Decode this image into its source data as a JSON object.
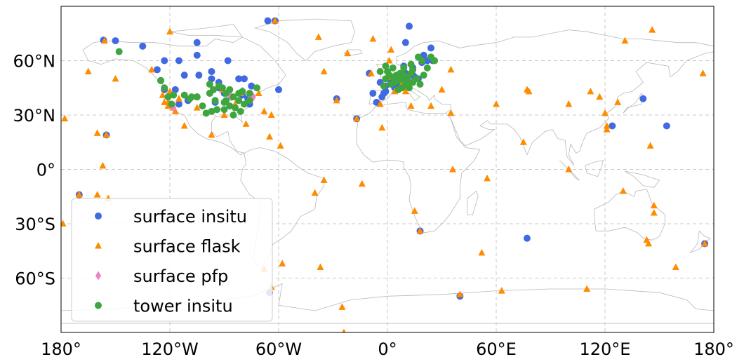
{
  "chart_data": {
    "type": "scatter",
    "projection": "plate-carree",
    "xlim": [
      -180,
      180
    ],
    "ylim": [
      -90,
      90
    ],
    "grid": true,
    "grid_style": "dashed",
    "legend_position": "lower-left",
    "x_ticks": [
      {
        "value": -180,
        "label": "180°"
      },
      {
        "value": -120,
        "label": "120°W"
      },
      {
        "value": -60,
        "label": "60°W"
      },
      {
        "value": 0,
        "label": "0°"
      },
      {
        "value": 60,
        "label": "60°E"
      },
      {
        "value": 120,
        "label": "120°E"
      },
      {
        "value": 180,
        "label": "180°"
      }
    ],
    "y_ticks": [
      {
        "value": 60,
        "label": "60°N"
      },
      {
        "value": 30,
        "label": "30°N"
      },
      {
        "value": 0,
        "label": "0°"
      },
      {
        "value": -30,
        "label": "30°S"
      },
      {
        "value": -60,
        "label": "60°S"
      }
    ],
    "series": [
      {
        "name": "surface insitu",
        "marker": "circle",
        "color": "#4169e1",
        "points": [
          [
            -156.6,
            71.3
          ],
          [
            -150,
            71
          ],
          [
            -135,
            68
          ],
          [
            -123,
            60
          ],
          [
            -127,
            55
          ],
          [
            -105,
            70
          ],
          [
            -105,
            63
          ],
          [
            -115,
            60
          ],
          [
            -112,
            52
          ],
          [
            -104,
            52
          ],
          [
            -97,
            50
          ],
          [
            -97,
            54
          ],
          [
            -88,
            60
          ],
          [
            -82,
            50
          ],
          [
            -79,
            50
          ],
          [
            -75,
            46
          ],
          [
            -60,
            44
          ],
          [
            -93,
            48
          ],
          [
            -93,
            45
          ],
          [
            -98,
            42
          ],
          [
            -90,
            42
          ],
          [
            -86,
            40
          ],
          [
            -80,
            41
          ],
          [
            -77,
            39
          ],
          [
            -76,
            36
          ],
          [
            -95,
            37
          ],
          [
            -105,
            40
          ],
          [
            -115,
            36
          ],
          [
            -120,
            36
          ],
          [
            -123,
            44
          ],
          [
            -125,
            49
          ],
          [
            -110,
            38
          ],
          [
            -117,
            44
          ],
          [
            -66,
            82
          ],
          [
            -62,
            82
          ],
          [
            -170,
            -14
          ],
          [
            -155,
            19
          ],
          [
            -65,
            -68
          ],
          [
            12,
            79
          ],
          [
            10,
            70
          ],
          [
            24,
            67
          ],
          [
            20,
            63
          ],
          [
            22,
            60
          ],
          [
            14,
            56
          ],
          [
            9,
            57
          ],
          [
            5,
            52
          ],
          [
            8,
            53
          ],
          [
            10,
            53
          ],
          [
            14,
            52
          ],
          [
            15,
            51
          ],
          [
            11,
            50
          ],
          [
            8,
            50
          ],
          [
            6,
            50
          ],
          [
            9,
            48
          ],
          [
            11,
            48
          ],
          [
            7,
            46
          ],
          [
            4,
            45
          ],
          [
            2,
            48
          ],
          [
            -1,
            46
          ],
          [
            -4,
            48
          ],
          [
            -1,
            43
          ],
          [
            -2,
            42
          ],
          [
            -3,
            40
          ],
          [
            -6,
            37
          ],
          [
            -8,
            42
          ],
          [
            -10,
            53
          ],
          [
            -17,
            28
          ],
          [
            -28,
            39
          ],
          [
            18,
            -34
          ],
          [
            77,
            -38
          ],
          [
            40,
            -70
          ],
          [
            141,
            39
          ],
          [
            154,
            24
          ],
          [
            124,
            24
          ],
          [
            175,
            -41
          ],
          [
            19,
            59
          ],
          [
            25,
            60
          ],
          [
            17,
            50
          ]
        ]
      },
      {
        "name": "surface flask",
        "marker": "triangle",
        "color": "#ff8c00",
        "points": [
          [
            -156,
            71
          ],
          [
            -120,
            76
          ],
          [
            -165,
            54
          ],
          [
            -150,
            50
          ],
          [
            -178,
            28
          ],
          [
            -155,
            19
          ],
          [
            -160,
            20
          ],
          [
            -157,
            2
          ],
          [
            -170,
            -14
          ],
          [
            -179,
            -30
          ],
          [
            -62,
            82
          ],
          [
            -68,
            32
          ],
          [
            -65,
            18
          ],
          [
            -59,
            13
          ],
          [
            -123,
            37
          ],
          [
            -121,
            35
          ],
          [
            -117,
            32
          ],
          [
            -112,
            24
          ],
          [
            -97,
            19
          ],
          [
            -124,
            41
          ],
          [
            -120,
            43
          ],
          [
            -115,
            39
          ],
          [
            -90,
            30
          ],
          [
            -78,
            25
          ],
          [
            -71,
            42
          ],
          [
            -38,
            73
          ],
          [
            -35,
            54
          ],
          [
            -22,
            64
          ],
          [
            -28,
            38
          ],
          [
            -17,
            28
          ],
          [
            -8,
            72
          ],
          [
            -9,
            53
          ],
          [
            1,
            60
          ],
          [
            2,
            66
          ],
          [
            0,
            51
          ],
          [
            -4,
            36
          ],
          [
            4,
            43
          ],
          [
            8,
            47
          ],
          [
            10,
            43
          ],
          [
            13,
            35
          ],
          [
            24,
            35
          ],
          [
            35,
            31
          ],
          [
            -3,
            23
          ],
          [
            30,
            44
          ],
          [
            35,
            55
          ],
          [
            36,
            0
          ],
          [
            55,
            -5
          ],
          [
            60,
            36
          ],
          [
            75,
            15
          ],
          [
            77,
            44
          ],
          [
            78,
            43
          ],
          [
            100,
            36
          ],
          [
            100,
            0
          ],
          [
            112,
            43
          ],
          [
            117,
            40
          ],
          [
            120,
            31
          ],
          [
            121,
            22
          ],
          [
            121,
            24
          ],
          [
            127,
            37
          ],
          [
            131,
            71
          ],
          [
            146,
            77
          ],
          [
            174,
            53
          ],
          [
            145,
            13
          ],
          [
            130,
            -12
          ],
          [
            147,
            -20
          ],
          [
            147,
            -24
          ],
          [
            143,
            -39
          ],
          [
            144,
            -41
          ],
          [
            175,
            -41
          ],
          [
            159,
            -54
          ],
          [
            110,
            -66
          ],
          [
            63,
            -67
          ],
          [
            40,
            -69
          ],
          [
            52,
            -46
          ],
          [
            15,
            -23
          ],
          [
            18,
            -34
          ],
          [
            -40,
            -13
          ],
          [
            -35,
            -6
          ],
          [
            -14,
            -8
          ],
          [
            -37,
            -54
          ],
          [
            -64,
            -65
          ],
          [
            -68,
            -55
          ],
          [
            -25,
            -76
          ],
          [
            -24,
            -90
          ],
          [
            -121,
            37
          ],
          [
            -130,
            55
          ],
          [
            -160,
            -14
          ],
          [
            -154,
            -16
          ],
          [
            -118,
            34
          ],
          [
            -91,
            44
          ],
          [
            -81,
            42
          ],
          [
            -84,
            36
          ],
          [
            -105,
            34
          ],
          [
            -64,
            30
          ],
          [
            -58,
            -52
          ]
        ]
      },
      {
        "name": "surface pfp",
        "marker": "diamond",
        "color": "#ee82c8",
        "points": [
          [
            -118,
            34
          ],
          [
            -87,
            41
          ],
          [
            -86,
            40
          ],
          [
            -80,
            43
          ],
          [
            -76,
            41
          ],
          [
            -74,
            40
          ]
        ]
      },
      {
        "name": "tower insitu",
        "marker": "circle",
        "color": "#3fa63f",
        "points": [
          [
            -148,
            65
          ],
          [
            -125,
            49
          ],
          [
            -123,
            45
          ],
          [
            -121,
            40
          ],
          [
            -119,
            36
          ],
          [
            -112,
            41
          ],
          [
            -108,
            40
          ],
          [
            -105,
            40
          ],
          [
            -98,
            47
          ],
          [
            -96,
            44
          ],
          [
            -93,
            46
          ],
          [
            -91,
            45
          ],
          [
            -89,
            42
          ],
          [
            -87,
            44
          ],
          [
            -85,
            40
          ],
          [
            -82,
            42
          ],
          [
            -80,
            43
          ],
          [
            -76,
            42
          ],
          [
            -72,
            45
          ],
          [
            -100,
            31
          ],
          [
            -97,
            32
          ],
          [
            -94,
            33
          ],
          [
            -90,
            33
          ],
          [
            -87,
            35
          ],
          [
            -84,
            34
          ],
          [
            -82,
            38
          ],
          [
            -79,
            36
          ],
          [
            -102,
            35
          ],
          [
            -118,
            41
          ],
          [
            -109,
            39
          ],
          [
            -90,
            37
          ],
          [
            -85,
            30
          ],
          [
            -81,
            32
          ],
          [
            -76,
            38
          ],
          [
            -98,
            42
          ],
          [
            -95,
            38
          ],
          [
            -89,
            38
          ],
          [
            -1,
            57
          ],
          [
            0,
            54
          ],
          [
            1,
            52
          ],
          [
            3,
            51
          ],
          [
            5,
            52
          ],
          [
            6,
            49
          ],
          [
            8,
            50
          ],
          [
            10,
            47
          ],
          [
            12,
            48
          ],
          [
            8,
            45
          ],
          [
            4,
            48
          ],
          [
            6,
            44
          ],
          [
            11,
            51
          ],
          [
            13,
            53
          ],
          [
            16,
            50
          ],
          [
            18,
            47
          ],
          [
            14,
            55
          ],
          [
            19,
            60
          ],
          [
            24,
            62
          ],
          [
            17,
            62
          ],
          [
            13,
            58
          ],
          [
            9,
            56
          ],
          [
            2,
            47
          ],
          [
            -2,
            46
          ],
          [
            -4,
            54
          ],
          [
            -1,
            50
          ],
          [
            3,
            56
          ],
          [
            12,
            45
          ],
          [
            14,
            48
          ],
          [
            20,
            52
          ],
          [
            22,
            56
          ],
          [
            26,
            60
          ],
          [
            7,
            53
          ],
          [
            9,
            52
          ],
          [
            11,
            49
          ]
        ]
      }
    ]
  }
}
